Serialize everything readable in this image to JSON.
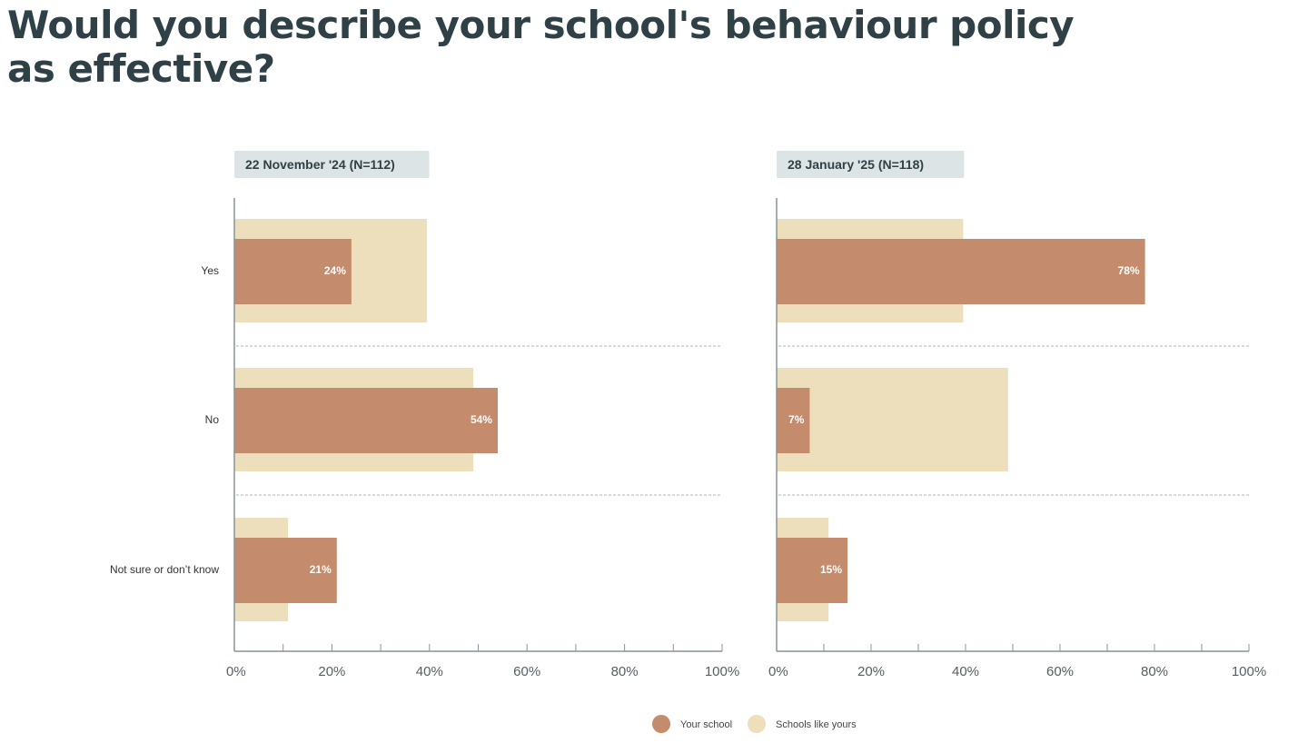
{
  "title": "Would you describe your school's behaviour policy as effective?",
  "chart_data": {
    "type": "bar",
    "orientation": "horizontal",
    "categories": [
      "Yes",
      "No",
      "Not sure or don’t know"
    ],
    "xlim": [
      0,
      100
    ],
    "x_ticks": [
      "0%",
      "20%",
      "40%",
      "60%",
      "80%",
      "100%"
    ],
    "legend_position": "bottom-center",
    "colors": {
      "your_school": "#c48c6c",
      "schools_like_yours": "#eddfbb",
      "panel_bg": "#dde4e6",
      "axis": "#8a9498"
    },
    "legend": [
      "Your school",
      "Schools like yours"
    ],
    "panels": [
      {
        "title": "22 November '24 (N=112)",
        "series": [
          {
            "name": "Your school",
            "values": [
              24,
              54,
              21
            ],
            "labels": [
              "24%",
              "54%",
              "21%"
            ]
          },
          {
            "name": "Schools like yours",
            "values": [
              39.5,
              49,
              11
            ]
          }
        ]
      },
      {
        "title": "28 January '25 (N=118)",
        "series": [
          {
            "name": "Your school",
            "values": [
              78,
              7,
              15
            ],
            "labels": [
              "78%",
              "7%",
              "15%"
            ]
          },
          {
            "name": "Schools like yours",
            "values": [
              39.5,
              49,
              11
            ]
          }
        ]
      }
    ]
  }
}
